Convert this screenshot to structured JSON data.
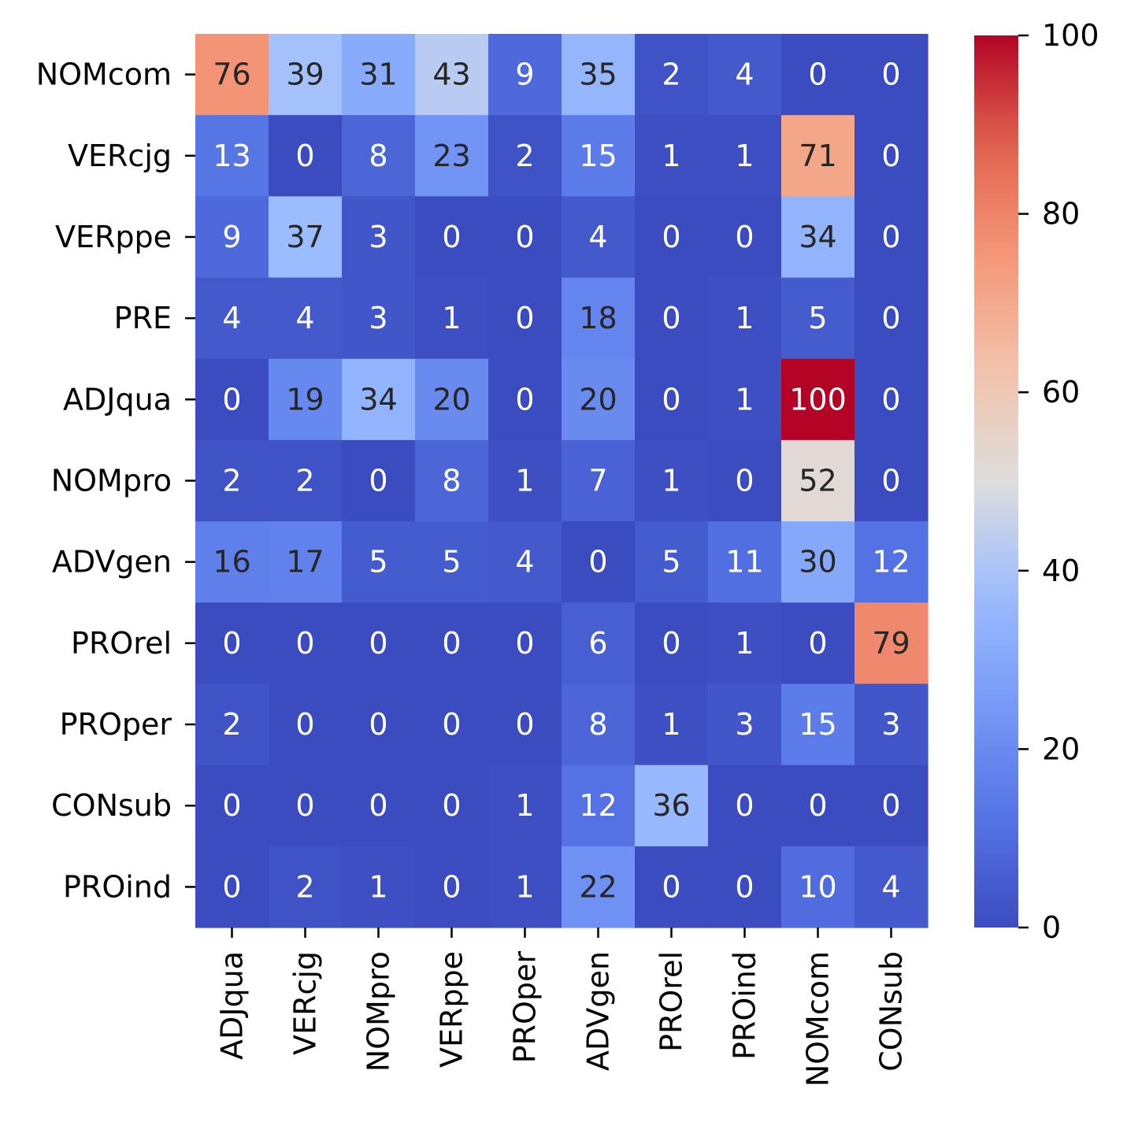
{
  "chart_data": {
    "type": "heatmap",
    "colormap": "coolwarm",
    "annotated": true,
    "grid": false,
    "legend": "colorbar-right",
    "y_categories": [
      "NOMcom",
      "VERcjg",
      "VERppe",
      "PRE",
      "ADJqua",
      "NOMpro",
      "ADVgen",
      "PROrel",
      "PROper",
      "CONsub",
      "PROind"
    ],
    "x_categories": [
      "ADJqua",
      "VERcjg",
      "NOMpro",
      "VERppe",
      "PROper",
      "ADVgen",
      "PROrel",
      "PROind",
      "NOMcom",
      "CONsub"
    ],
    "values": [
      [
        76,
        39,
        31,
        43,
        9,
        35,
        2,
        4,
        0,
        0
      ],
      [
        13,
        0,
        8,
        23,
        2,
        15,
        1,
        1,
        71,
        0
      ],
      [
        9,
        37,
        3,
        0,
        0,
        4,
        0,
        0,
        34,
        0
      ],
      [
        4,
        4,
        3,
        1,
        0,
        18,
        0,
        1,
        5,
        0
      ],
      [
        0,
        19,
        34,
        20,
        0,
        20,
        0,
        1,
        100,
        0
      ],
      [
        2,
        2,
        0,
        8,
        1,
        7,
        1,
        0,
        52,
        0
      ],
      [
        16,
        17,
        5,
        5,
        4,
        0,
        5,
        11,
        30,
        12
      ],
      [
        0,
        0,
        0,
        0,
        0,
        6,
        0,
        1,
        0,
        79
      ],
      [
        2,
        0,
        0,
        0,
        0,
        8,
        1,
        3,
        15,
        3
      ],
      [
        0,
        0,
        0,
        0,
        1,
        12,
        36,
        0,
        0,
        0
      ],
      [
        0,
        2,
        1,
        0,
        1,
        22,
        0,
        0,
        10,
        4
      ]
    ],
    "vmin": 0,
    "vmax": 100,
    "colorbar_ticks": [
      0,
      20,
      40,
      60,
      80,
      100
    ]
  }
}
